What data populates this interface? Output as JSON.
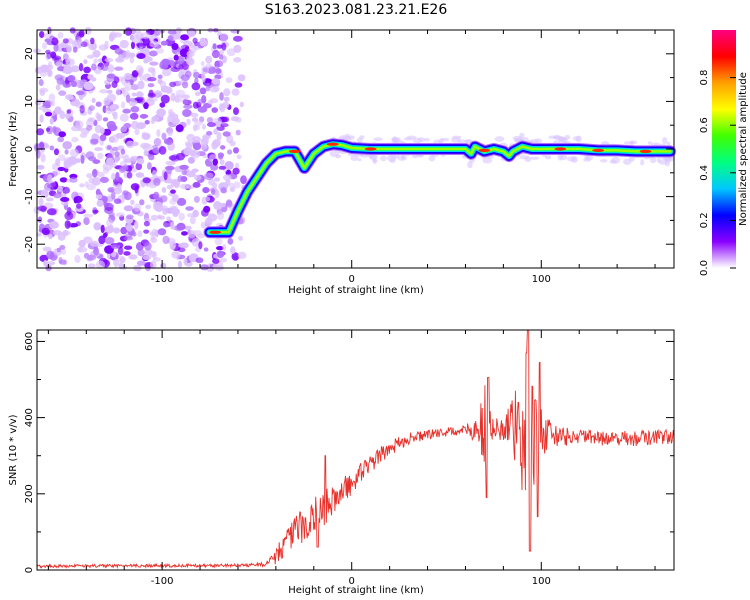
{
  "title": "S163.2023.081.23.21.E26",
  "chart_data": [
    {
      "type": "heatmap",
      "xlabel": "Height of straight line (km)",
      "ylabel": "Frequency (Hz)",
      "xlim": [
        -166,
        170
      ],
      "ylim": [
        -25,
        25
      ],
      "xticks": [
        -100,
        0,
        100
      ],
      "yticks": [
        -20,
        -10,
        0,
        10,
        20
      ],
      "colorbar": {
        "label": "Normalized spectral amplitude",
        "range": [
          0,
          1
        ],
        "ticks": [
          0.0,
          0.2,
          0.4,
          0.6,
          0.8
        ],
        "tick_labels": [
          "0.0",
          "0.2",
          "0.4",
          "0.6",
          "0.8"
        ],
        "colors": [
          "#ffffff",
          "#8a00ff",
          "#0000ff",
          "#00c8ff",
          "#00ff80",
          "#40ff00",
          "#ffff00",
          "#ffa000",
          "#ff0000",
          "#ff0080"
        ]
      },
      "ridge": {
        "x": [
          -75,
          -65,
          -60,
          -55,
          -50,
          -45,
          -40,
          -35,
          -30,
          -25,
          -20,
          -15,
          -10,
          -5,
          0,
          10,
          20,
          30,
          40,
          50,
          60,
          63,
          65,
          70,
          75,
          80,
          83,
          85,
          90,
          95,
          100,
          110,
          120,
          130,
          140,
          150,
          160,
          168
        ],
        "y": [
          -17.5,
          -17.5,
          -13,
          -9,
          -6,
          -3,
          -1,
          -0.5,
          -0.5,
          -4,
          -1,
          0.5,
          1,
          0.8,
          0.2,
          0,
          0,
          0,
          0,
          0,
          0,
          -1,
          0.5,
          -0.5,
          0,
          -0.5,
          -1.5,
          -0.5,
          0.5,
          0,
          0,
          0,
          0,
          -0.3,
          -0.3,
          -0.5,
          -0.5,
          -0.5
        ]
      },
      "noise_region_x": [
        -166,
        -55
      ]
    },
    {
      "type": "line",
      "xlabel": "Height of straight line (km)",
      "ylabel": "SNR (10 * v/v)",
      "xlim": [
        -166,
        170
      ],
      "ylim": [
        0,
        630
      ],
      "xticks": [
        -100,
        0,
        100
      ],
      "yticks": [
        0,
        200,
        400,
        600
      ],
      "color": "#e8302a",
      "envelope": {
        "x": [
          -166,
          -60,
          -45,
          -40,
          -35,
          -30,
          -20,
          -10,
          0,
          10,
          20,
          30,
          40,
          50,
          60,
          65,
          70,
          75,
          80,
          85,
          90,
          95,
          100,
          105,
          110,
          120,
          130,
          140,
          150,
          160,
          170
        ],
        "y": [
          10,
          12,
          15,
          40,
          70,
          100,
          140,
          180,
          230,
          280,
          320,
          345,
          355,
          362,
          368,
          370,
          370,
          365,
          370,
          370,
          360,
          370,
          365,
          355,
          350,
          350,
          345,
          345,
          345,
          348,
          350
        ],
        "noise_amp": [
          4,
          4,
          6,
          25,
          30,
          40,
          55,
          45,
          30,
          25,
          20,
          15,
          12,
          12,
          12,
          35,
          120,
          40,
          40,
          80,
          170,
          180,
          90,
          30,
          25,
          20,
          20,
          20,
          20,
          20,
          20
        ]
      },
      "peaks": [
        {
          "x": 71,
          "y": 190
        },
        {
          "x": 72,
          "y": 505
        },
        {
          "x": 88,
          "y": 440
        },
        {
          "x": 92,
          "y": 570
        },
        {
          "x": 93,
          "y": 630
        },
        {
          "x": 94,
          "y": 50
        },
        {
          "x": 99,
          "y": 545
        },
        {
          "x": 98,
          "y": 140
        },
        {
          "x": -14,
          "y": 300
        },
        {
          "x": -18,
          "y": 60
        }
      ]
    }
  ]
}
